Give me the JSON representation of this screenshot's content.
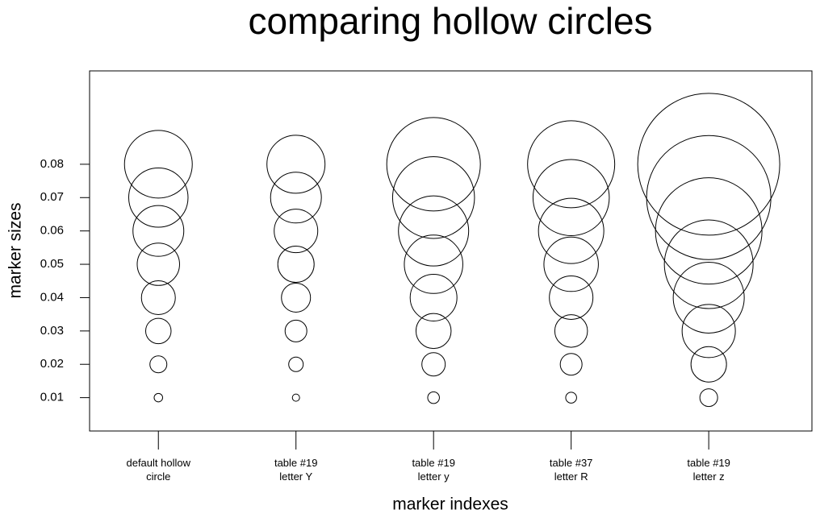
{
  "chart_data": {
    "type": "scatter",
    "title": "comparing hollow circles",
    "xlabel": "marker indexes",
    "ylabel": "marker sizes",
    "xlim": [
      0.5,
      5.75
    ],
    "ylim": [
      0,
      0.108
    ],
    "xticks": [
      {
        "value": 1,
        "label": "default hollow\ncircle"
      },
      {
        "value": 2,
        "label": "table #19\nletter Y"
      },
      {
        "value": 3,
        "label": "table #19\nletter y"
      },
      {
        "value": 4,
        "label": "table #37\nletter R"
      },
      {
        "value": 5,
        "label": "table #19\nletter z"
      }
    ],
    "yticks": [
      0.01,
      0.02,
      0.03,
      0.04,
      0.05,
      0.06,
      0.07,
      0.08
    ],
    "series": [
      {
        "color": "#000000",
        "x": [
          1,
          1,
          1,
          1,
          1,
          1,
          1,
          1
        ],
        "values": [
          0.01,
          0.02,
          0.03,
          0.04,
          0.05,
          0.06,
          0.07,
          0.08
        ]
      },
      {
        "color": "#000000",
        "x": [
          2,
          2,
          2,
          2,
          2,
          2,
          2,
          2
        ],
        "values": [
          0.01,
          0.02,
          0.03,
          0.04,
          0.05,
          0.06,
          0.07,
          0.08
        ]
      },
      {
        "color": "#000000",
        "x": [
          3,
          3,
          3,
          3,
          3,
          3,
          3,
          3
        ],
        "values": [
          0.01,
          0.02,
          0.03,
          0.04,
          0.05,
          0.06,
          0.07,
          0.08
        ]
      },
      {
        "color": "#000000",
        "x": [
          4,
          4,
          4,
          4,
          4,
          4,
          4,
          4
        ],
        "values": [
          0.01,
          0.02,
          0.03,
          0.04,
          0.05,
          0.06,
          0.07,
          0.08
        ]
      },
      {
        "color": "#000000",
        "x": [
          5,
          5,
          5,
          5,
          5,
          5,
          5,
          5
        ],
        "values": [
          0.01,
          0.02,
          0.03,
          0.04,
          0.05,
          0.06,
          0.07,
          0.08
        ]
      }
    ]
  }
}
